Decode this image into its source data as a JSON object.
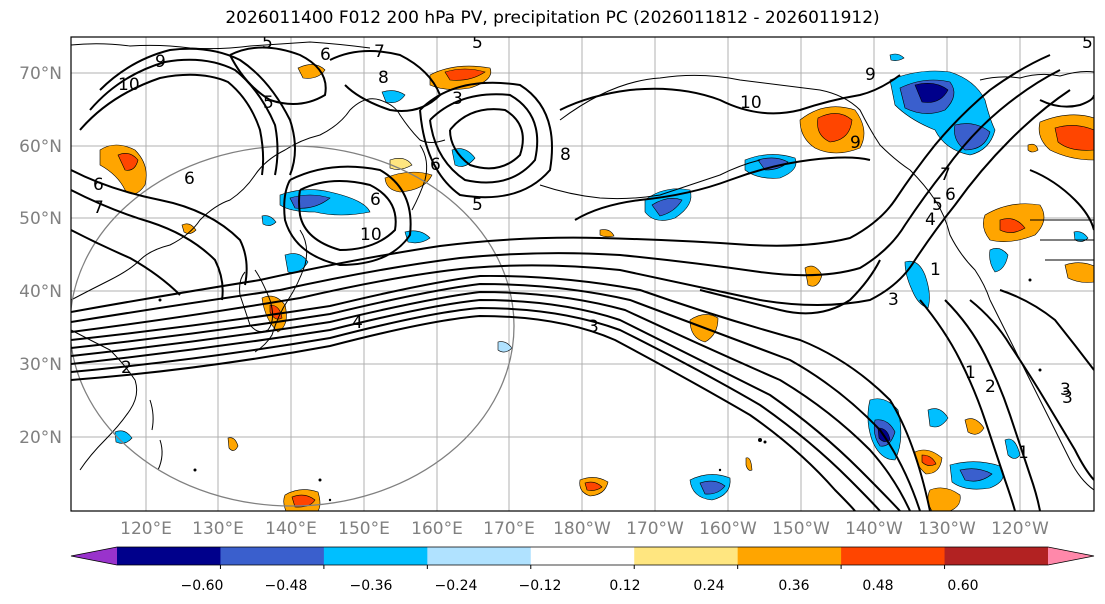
{
  "title": "2026011400 F012 200 hPa PV, precipitation PC (2026011812 - 2026011912)",
  "lat_labels": [
    "70°N",
    "60°N",
    "50°N",
    "40°N",
    "30°N",
    "20°N"
  ],
  "lon_labels": [
    "120°E",
    "130°E",
    "140°E",
    "150°E",
    "160°E",
    "170°E",
    "180°W",
    "170°W",
    "160°W",
    "150°W",
    "140°W",
    "130°W",
    "120°W"
  ],
  "colorbar": {
    "ticks": [
      "−0.60",
      "−0.48",
      "−0.36",
      "−0.24",
      "−0.12",
      "0.12",
      "0.24",
      "0.36",
      "0.48",
      "0.60"
    ],
    "colors": [
      "#9933cc",
      "#00008b",
      "#3a5fcd",
      "#00bfff",
      "#b0e2ff",
      "#ffffff",
      "#ffe680",
      "#ffa500",
      "#ff4500",
      "#b22222",
      "#ff88aa"
    ]
  },
  "contour_labels": [
    "10",
    "9",
    "7",
    "8",
    "5",
    "6",
    "5",
    "3",
    "5",
    "6",
    "7",
    "6",
    "5",
    "6",
    "10",
    "4",
    "2",
    "3",
    "8",
    "10",
    "9",
    "7",
    "6",
    "5",
    "4",
    "3",
    "1",
    "3",
    "2",
    "1",
    "3",
    "9",
    "5",
    "6",
    "1"
  ]
}
